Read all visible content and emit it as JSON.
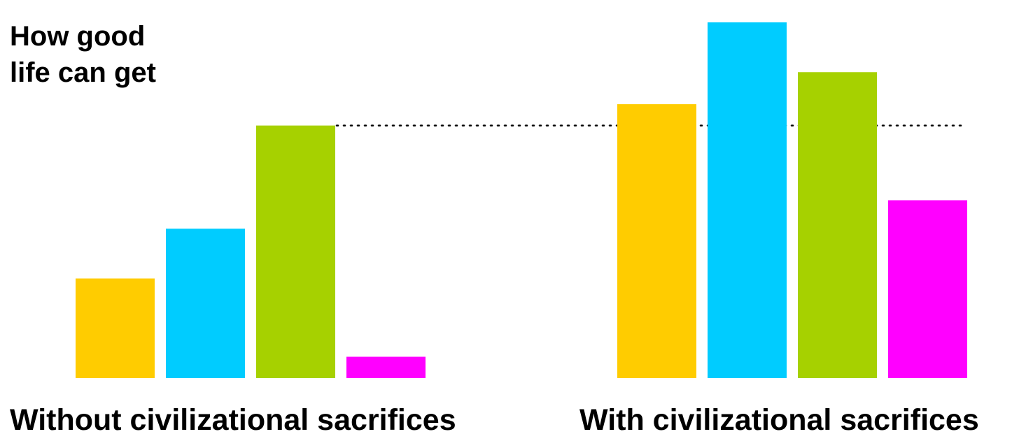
{
  "chart_data": {
    "type": "bar",
    "ylabel": [
      "How good",
      "life can get"
    ],
    "xlabel": "",
    "title": "",
    "ylim": [
      0,
      100
    ],
    "grid": false,
    "legend": "none",
    "groups": [
      {
        "label": "Without civilizational sacrifices",
        "values": [
          28,
          42,
          71,
          6
        ]
      },
      {
        "label": "With civilizational sacrifices",
        "values": [
          77,
          100,
          86,
          50
        ]
      }
    ],
    "bar_colors": [
      "#ffcc00",
      "#00ccff",
      "#a6d100",
      "#ff00ff"
    ],
    "reference_line": {
      "value": 71,
      "style": "dotted",
      "color": "#000000"
    }
  }
}
